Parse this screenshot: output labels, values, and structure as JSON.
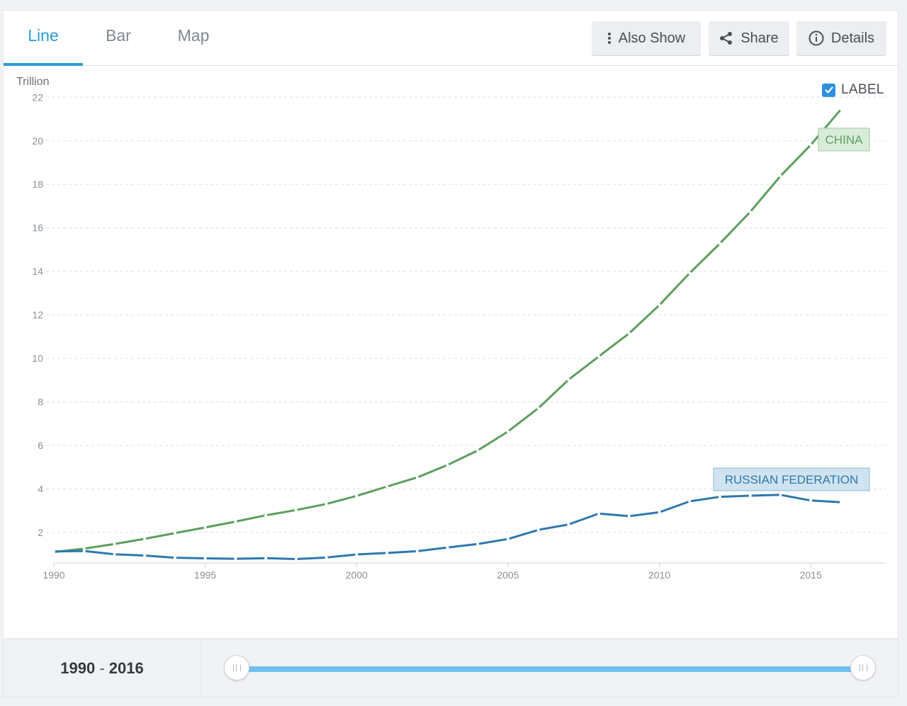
{
  "tabs": [
    {
      "label": "Line",
      "active": true
    },
    {
      "label": "Bar",
      "active": false
    },
    {
      "label": "Map",
      "active": false
    }
  ],
  "toolbar": {
    "also_show": {
      "label": "Also Show",
      "icon": "vertical-dots-icon"
    },
    "share": {
      "label": "Share",
      "icon": "share-icon"
    },
    "details": {
      "label": "Details",
      "icon": "info-circle-icon"
    }
  },
  "label_toggle": {
    "text": "LABEL",
    "checked": true
  },
  "range": {
    "start": "1990",
    "separator": "-",
    "end": "2016"
  },
  "colors": {
    "accent": "#2d9bd8",
    "china": "#5e9e5e",
    "russia": "#2e78ad"
  },
  "chart_data": {
    "type": "line",
    "ylabel": "Trillion",
    "ylim": [
      0.6,
      22.4
    ],
    "yticks": [
      2,
      4,
      6,
      8,
      10,
      12,
      14,
      16,
      18,
      20,
      22
    ],
    "xlim": [
      1990,
      2017.5
    ],
    "xticks": [
      1990,
      1995,
      2000,
      2005,
      2010,
      2015
    ],
    "grid": true,
    "x": [
      1990,
      1991,
      1992,
      1993,
      1994,
      1995,
      1996,
      1997,
      1998,
      1999,
      2000,
      2001,
      2002,
      2003,
      2004,
      2005,
      2006,
      2007,
      2008,
      2009,
      2010,
      2011,
      2012,
      2013,
      2014,
      2015,
      2016
    ],
    "series": [
      {
        "name": "CHINA",
        "color": "#5e9e5e",
        "values": [
          1.1,
          1.26,
          1.47,
          1.71,
          1.97,
          2.23,
          2.5,
          2.79,
          3.03,
          3.31,
          3.68,
          4.11,
          4.53,
          5.1,
          5.77,
          6.64,
          7.71,
          9.02,
          10.09,
          11.15,
          12.45,
          13.92,
          15.28,
          16.73,
          18.38,
          19.81,
          21.45
        ]
      },
      {
        "name": "RUSSIAN FEDERATION",
        "color": "#2e78ad",
        "values": [
          1.13,
          1.15,
          1.0,
          0.94,
          0.84,
          0.81,
          0.79,
          0.82,
          0.78,
          0.85,
          0.99,
          1.06,
          1.14,
          1.31,
          1.47,
          1.7,
          2.12,
          2.37,
          2.87,
          2.75,
          2.93,
          3.43,
          3.64,
          3.69,
          3.73,
          3.47,
          3.39
        ]
      }
    ]
  }
}
